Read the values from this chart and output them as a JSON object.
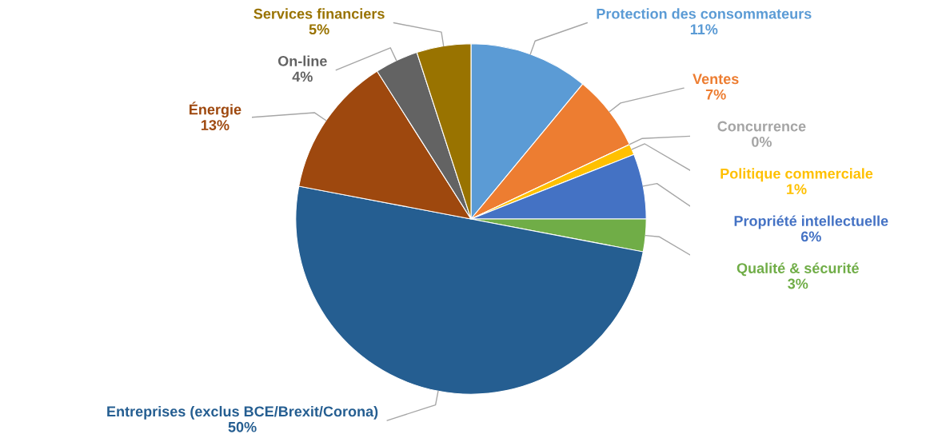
{
  "chart_data": {
    "type": "pie",
    "categories": [
      "Protection des consommateurs",
      "Ventes",
      "Concurrence",
      "Politique commerciale",
      "Propriété intellectuelle",
      "Qualité & sécurité",
      "Entreprises (exclus BCE/Brexit/Corona)",
      "Énergie",
      "On-line",
      "Services financiers"
    ],
    "values": [
      11,
      7,
      0,
      1,
      6,
      3,
      50,
      13,
      4,
      5
    ],
    "colors": [
      "#5b9bd5",
      "#ed7d31",
      "#a5a5a5",
      "#ffc000",
      "#4472c4",
      "#70ad47",
      "#255e91",
      "#9e480e",
      "#636363",
      "#997300"
    ],
    "value_labels": [
      "11%",
      "7%",
      "0%",
      "1%",
      "6%",
      "3%",
      "50%",
      "13%",
      "4%",
      "5%"
    ],
    "legend": false
  }
}
